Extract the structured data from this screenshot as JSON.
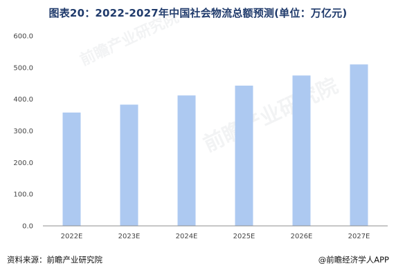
{
  "title": "图表20：2022-2027年中国社会物流总额预测(单位：万亿元)",
  "source": "资料来源：前瞻产业研究院",
  "credit": "@前瞻经济学人APP",
  "colors": {
    "bar": "#adc9f1",
    "axis": "#8c8c8c",
    "title": "#1f3a6b"
  },
  "chart_data": {
    "type": "bar",
    "categories": [
      "2022E",
      "2023E",
      "2024E",
      "2025E",
      "2026E",
      "2027E"
    ],
    "values": [
      358,
      383,
      412,
      443,
      475,
      510
    ],
    "yticks": [
      "0.0",
      "100.0",
      "200.0",
      "300.0",
      "400.0",
      "500.0",
      "600.0"
    ],
    "ylim": [
      0,
      600
    ],
    "grid": false,
    "legend": "none"
  }
}
